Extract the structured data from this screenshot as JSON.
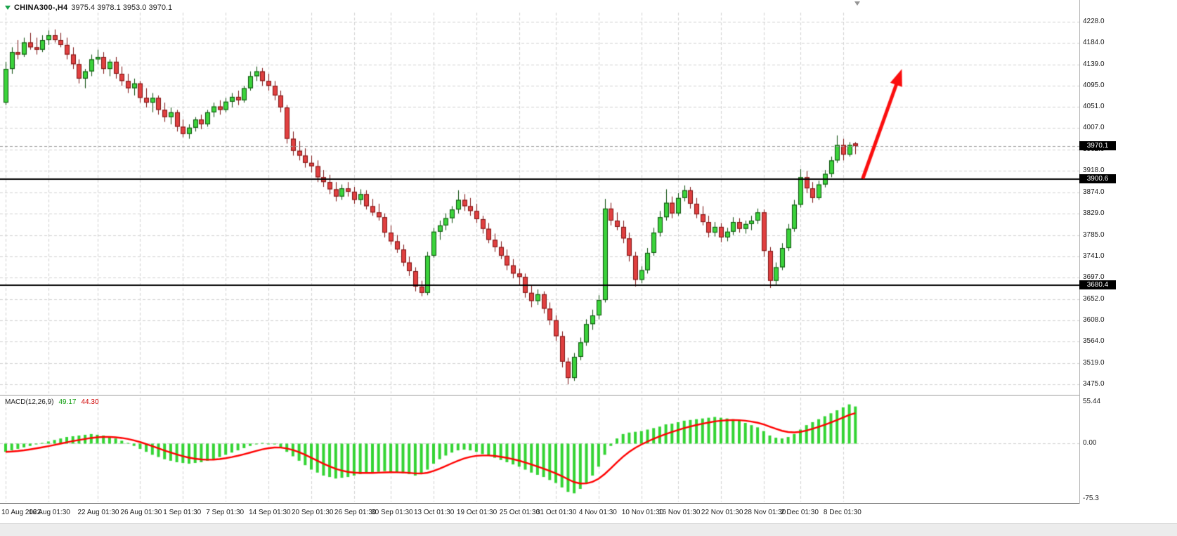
{
  "header": {
    "symbol": "CHINA300-,H4",
    "ohlc": "3975.4 3978.1 3953.0 3970.1"
  },
  "indicator": {
    "label": "MACD(12,26,9)",
    "main_value": "49.17",
    "signal_value": "44.30"
  },
  "colors": {
    "background": "#ffffff",
    "grid": "#d2d2d2",
    "bull_fill": "#3bd33b",
    "bull_stroke": "#0b4d0b",
    "bear_fill": "#e04040",
    "bear_stroke": "#7c1212",
    "hline": "#000000",
    "last_price_line": "#a0a0a0",
    "macd_histogram": "#33d433",
    "macd_signal": "#ff0000",
    "arrow": "#fb0e0e",
    "badge_bg": "#000000",
    "badge_fg": "#ffffff",
    "axis_text": "#1a1a1a"
  },
  "macd_axis_ticks": [
    {
      "text": "55.44",
      "value": 55.44
    },
    {
      "text": "0.00",
      "value": 0
    },
    {
      "text": "-75.3",
      "value": -75.3
    }
  ],
  "price_badges": [
    {
      "text": "3970.1",
      "price": 3970.1,
      "name": "last-price"
    },
    {
      "text": "3900.6",
      "price": 3900.6,
      "name": "resistance-level"
    },
    {
      "text": "3680.4",
      "price": 3680.4,
      "name": "support-level"
    }
  ],
  "time_axis_labels": [
    {
      "text": "10 Aug 2022",
      "bar": 0
    },
    {
      "text": "16 Aug 01:30",
      "bar": 7
    },
    {
      "text": "22 Aug 01:30",
      "bar": 15
    },
    {
      "text": "26 Aug 01:30",
      "bar": 22
    },
    {
      "text": "1 Sep 01:30",
      "bar": 29
    },
    {
      "text": "7 Sep 01:30",
      "bar": 36
    },
    {
      "text": "14 Sep 01:30",
      "bar": 43
    },
    {
      "text": "20 Sep 01:30",
      "bar": 50
    },
    {
      "text": "26 Sep 01:30",
      "bar": 57
    },
    {
      "text": "30 Sep 01:30",
      "bar": 63
    },
    {
      "text": "13 Oct 01:30",
      "bar": 70
    },
    {
      "text": "19 Oct 01:30",
      "bar": 77
    },
    {
      "text": "25 Oct 01:30",
      "bar": 84
    },
    {
      "text": "31 Oct 01:30",
      "bar": 90
    },
    {
      "text": "4 Nov 01:30",
      "bar": 97
    },
    {
      "text": "10 Nov 01:30",
      "bar": 104
    },
    {
      "text": "16 Nov 01:30",
      "bar": 110
    },
    {
      "text": "22 Nov 01:30",
      "bar": 117
    },
    {
      "text": "28 Nov 01:30",
      "bar": 124
    },
    {
      "text": "2 Dec 01:30",
      "bar": 130
    },
    {
      "text": "8 Dec 01:30",
      "bar": 137
    }
  ],
  "chart_data": {
    "type": "candlestick",
    "title": "CHINA300- H4",
    "price_range": [
      3475,
      4228
    ],
    "y_ticks": [
      4228.0,
      4184.0,
      4139.0,
      4095.0,
      4051.0,
      4007.0,
      3962.0,
      3918.0,
      3874.0,
      3829.0,
      3785.0,
      3741.0,
      3697.0,
      3652.0,
      3608.0,
      3564.0,
      3519.0,
      3475.0
    ],
    "ohlc_display": {
      "open": 3975.4,
      "high": 3978.1,
      "low": 3953.0,
      "close": 3970.1
    },
    "horizontal_lines": [
      3900.6,
      3680.4
    ],
    "last_price": 3970.1,
    "annotation_arrow": {
      "from": {
        "bar": 140.2,
        "price": 3902
      },
      "to": {
        "bar": 146.6,
        "price": 4130
      },
      "width": 5
    },
    "candles": [
      [
        4060,
        4145,
        4055,
        4130
      ],
      [
        4130,
        4175,
        4120,
        4165
      ],
      [
        4165,
        4190,
        4150,
        4160
      ],
      [
        4160,
        4195,
        4155,
        4185
      ],
      [
        4185,
        4205,
        4170,
        4175
      ],
      [
        4175,
        4195,
        4160,
        4170
      ],
      [
        4170,
        4200,
        4165,
        4190
      ],
      [
        4190,
        4210,
        4180,
        4200
      ],
      [
        4200,
        4212,
        4185,
        4190
      ],
      [
        4190,
        4205,
        4175,
        4180
      ],
      [
        4180,
        4195,
        4150,
        4160
      ],
      [
        4160,
        4175,
        4130,
        4140
      ],
      [
        4140,
        4150,
        4100,
        4110
      ],
      [
        4110,
        4130,
        4090,
        4125
      ],
      [
        4125,
        4160,
        4115,
        4150
      ],
      [
        4150,
        4170,
        4140,
        4155
      ],
      [
        4155,
        4165,
        4120,
        4130
      ],
      [
        4130,
        4150,
        4115,
        4145
      ],
      [
        4145,
        4155,
        4110,
        4120
      ],
      [
        4120,
        4135,
        4095,
        4105
      ],
      [
        4105,
        4120,
        4080,
        4090
      ],
      [
        4090,
        4110,
        4075,
        4100
      ],
      [
        4100,
        4105,
        4060,
        4070
      ],
      [
        4070,
        4090,
        4050,
        4060
      ],
      [
        4060,
        4080,
        4040,
        4070
      ],
      [
        4070,
        4075,
        4035,
        4045
      ],
      [
        4045,
        4060,
        4020,
        4030
      ],
      [
        4030,
        4050,
        4015,
        4040
      ],
      [
        4040,
        4045,
        4000,
        4010
      ],
      [
        4010,
        4025,
        3988,
        3995
      ],
      [
        3995,
        4015,
        3985,
        4008
      ],
      [
        4008,
        4030,
        4000,
        4025
      ],
      [
        4025,
        4035,
        4005,
        4015
      ],
      [
        4015,
        4045,
        4010,
        4040
      ],
      [
        4040,
        4060,
        4030,
        4052
      ],
      [
        4052,
        4065,
        4035,
        4045
      ],
      [
        4045,
        4070,
        4040,
        4062
      ],
      [
        4062,
        4080,
        4050,
        4072
      ],
      [
        4072,
        4085,
        4055,
        4065
      ],
      [
        4065,
        4095,
        4060,
        4090
      ],
      [
        4090,
        4125,
        4085,
        4115
      ],
      [
        4115,
        4135,
        4105,
        4125
      ],
      [
        4125,
        4132,
        4095,
        4105
      ],
      [
        4105,
        4120,
        4085,
        4095
      ],
      [
        4095,
        4105,
        4065,
        4075
      ],
      [
        4075,
        4085,
        4040,
        4050
      ],
      [
        4050,
        4055,
        3975,
        3985
      ],
      [
        3985,
        4000,
        3950,
        3960
      ],
      [
        3960,
        3980,
        3940,
        3950
      ],
      [
        3950,
        3965,
        3925,
        3935
      ],
      [
        3935,
        3950,
        3915,
        3928
      ],
      [
        3928,
        3940,
        3895,
        3905
      ],
      [
        3905,
        3920,
        3885,
        3895
      ],
      [
        3895,
        3910,
        3870,
        3880
      ],
      [
        3880,
        3895,
        3855,
        3865
      ],
      [
        3865,
        3890,
        3858,
        3882
      ],
      [
        3882,
        3895,
        3865,
        3875
      ],
      [
        3875,
        3885,
        3850,
        3858
      ],
      [
        3858,
        3880,
        3848,
        3870
      ],
      [
        3870,
        3878,
        3838,
        3845
      ],
      [
        3845,
        3860,
        3825,
        3832
      ],
      [
        3832,
        3850,
        3815,
        3822
      ],
      [
        3822,
        3830,
        3780,
        3790
      ],
      [
        3790,
        3805,
        3765,
        3772
      ],
      [
        3772,
        3785,
        3748,
        3755
      ],
      [
        3755,
        3765,
        3720,
        3728
      ],
      [
        3728,
        3740,
        3700,
        3710
      ],
      [
        3710,
        3718,
        3668,
        3678
      ],
      [
        3678,
        3690,
        3658,
        3665
      ],
      [
        3665,
        3750,
        3660,
        3742
      ],
      [
        3742,
        3800,
        3738,
        3792
      ],
      [
        3792,
        3815,
        3775,
        3805
      ],
      [
        3805,
        3830,
        3795,
        3820
      ],
      [
        3820,
        3845,
        3810,
        3838
      ],
      [
        3838,
        3878,
        3830,
        3858
      ],
      [
        3858,
        3870,
        3835,
        3845
      ],
      [
        3845,
        3862,
        3825,
        3835
      ],
      [
        3835,
        3850,
        3810,
        3818
      ],
      [
        3818,
        3825,
        3788,
        3798
      ],
      [
        3798,
        3810,
        3768,
        3775
      ],
      [
        3775,
        3788,
        3750,
        3760
      ],
      [
        3760,
        3772,
        3735,
        3742
      ],
      [
        3742,
        3755,
        3712,
        3722
      ],
      [
        3722,
        3735,
        3695,
        3705
      ],
      [
        3705,
        3715,
        3680,
        3698
      ],
      [
        3698,
        3705,
        3655,
        3665
      ],
      [
        3665,
        3680,
        3635,
        3648
      ],
      [
        3648,
        3672,
        3640,
        3662
      ],
      [
        3662,
        3668,
        3622,
        3632
      ],
      [
        3632,
        3645,
        3598,
        3608
      ],
      [
        3608,
        3618,
        3565,
        3575
      ],
      [
        3575,
        3585,
        3510,
        3522
      ],
      [
        3522,
        3530,
        3475,
        3488
      ],
      [
        3488,
        3540,
        3482,
        3532
      ],
      [
        3532,
        3572,
        3525,
        3562
      ],
      [
        3562,
        3610,
        3555,
        3600
      ],
      [
        3600,
        3630,
        3588,
        3618
      ],
      [
        3618,
        3660,
        3610,
        3650
      ],
      [
        3650,
        3860,
        3645,
        3840
      ],
      [
        3840,
        3852,
        3805,
        3815
      ],
      [
        3815,
        3832,
        3795,
        3802
      ],
      [
        3802,
        3815,
        3768,
        3778
      ],
      [
        3778,
        3790,
        3730,
        3742
      ],
      [
        3742,
        3750,
        3678,
        3692
      ],
      [
        3692,
        3720,
        3685,
        3712
      ],
      [
        3712,
        3758,
        3705,
        3748
      ],
      [
        3748,
        3800,
        3742,
        3790
      ],
      [
        3790,
        3835,
        3782,
        3822
      ],
      [
        3822,
        3880,
        3815,
        3852
      ],
      [
        3852,
        3865,
        3820,
        3830
      ],
      [
        3830,
        3872,
        3825,
        3862
      ],
      [
        3862,
        3888,
        3855,
        3878
      ],
      [
        3878,
        3885,
        3840,
        3850
      ],
      [
        3850,
        3862,
        3820,
        3828
      ],
      [
        3828,
        3845,
        3805,
        3812
      ],
      [
        3812,
        3825,
        3780,
        3790
      ],
      [
        3790,
        3812,
        3782,
        3802
      ],
      [
        3802,
        3810,
        3770,
        3780
      ],
      [
        3780,
        3800,
        3772,
        3792
      ],
      [
        3792,
        3822,
        3785,
        3812
      ],
      [
        3812,
        3820,
        3790,
        3798
      ],
      [
        3798,
        3815,
        3788,
        3808
      ],
      [
        3808,
        3825,
        3795,
        3815
      ],
      [
        3815,
        3840,
        3808,
        3832
      ],
      [
        3832,
        3838,
        3740,
        3752
      ],
      [
        3752,
        3760,
        3675,
        3690
      ],
      [
        3690,
        3728,
        3682,
        3718
      ],
      [
        3718,
        3768,
        3712,
        3758
      ],
      [
        3758,
        3808,
        3752,
        3798
      ],
      [
        3798,
        3858,
        3792,
        3848
      ],
      [
        3848,
        3922,
        3842,
        3905
      ],
      [
        3905,
        3918,
        3872,
        3882
      ],
      [
        3882,
        3895,
        3852,
        3862
      ],
      [
        3862,
        3898,
        3858,
        3890
      ],
      [
        3890,
        3920,
        3884,
        3912
      ],
      [
        3912,
        3948,
        3905,
        3940
      ],
      [
        3940,
        3992,
        3935,
        3972
      ],
      [
        3972,
        3985,
        3940,
        3952
      ],
      [
        3952,
        3978,
        3948,
        3972
      ],
      [
        3975.4,
        3978.1,
        3953.0,
        3970.1
      ]
    ],
    "indicator": {
      "type": "MACD",
      "params": [
        12,
        26,
        9
      ],
      "range": [
        -75.3,
        55.44
      ],
      "main_last": 49.17,
      "signal_last": 44.3,
      "histogram": [
        -12,
        -10,
        -8,
        -6,
        -4,
        -2,
        0,
        2,
        4,
        6,
        8,
        9,
        10,
        11,
        12,
        11,
        10,
        8,
        6,
        3,
        0,
        -4,
        -8,
        -12,
        -16,
        -19,
        -22,
        -24,
        -26,
        -27,
        -28,
        -27,
        -26,
        -24,
        -22,
        -19,
        -16,
        -13,
        -10,
        -7,
        -4,
        -2,
        0,
        -1,
        -2,
        -7,
        -12,
        -18,
        -24,
        -30,
        -36,
        -40,
        -44,
        -46,
        -48,
        -47,
        -46,
        -44,
        -42,
        -41,
        -40,
        -39,
        -38,
        -39,
        -40,
        -41,
        -42,
        -44,
        -42,
        -36,
        -28,
        -22,
        -17,
        -13,
        -10,
        -9,
        -10,
        -12,
        -15,
        -17,
        -20,
        -23,
        -26,
        -29,
        -32,
        -36,
        -40,
        -43,
        -46,
        -50,
        -54,
        -60,
        -66,
        -68,
        -62,
        -54,
        -44,
        -32,
        -16,
        -4,
        6,
        12,
        14,
        15,
        16,
        18,
        20,
        22,
        25,
        26,
        28,
        30,
        31,
        32,
        33,
        34,
        35,
        34,
        33,
        32,
        30,
        27,
        24,
        21,
        16,
        10,
        7,
        6,
        8,
        12,
        18,
        24,
        28,
        32,
        36,
        40,
        44,
        48,
        52,
        49.17
      ]
    }
  }
}
